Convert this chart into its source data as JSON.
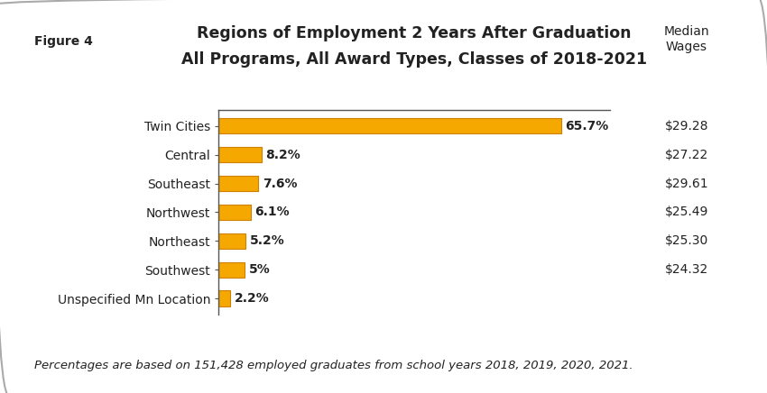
{
  "title_line1": "Regions of Employment 2 Years After Graduation",
  "title_line2": "All Programs, All Award Types, Classes of 2018-2021",
  "figure_label": "Figure 4",
  "median_wages_label": "Median\nWages",
  "categories": [
    "Twin Cities",
    "Central",
    "Southeast",
    "Northwest",
    "Northeast",
    "Southwest",
    "Unspecified Mn Location"
  ],
  "values": [
    65.7,
    8.2,
    7.6,
    6.1,
    5.2,
    5.0,
    2.2
  ],
  "value_labels": [
    "65.7%",
    "8.2%",
    "7.6%",
    "6.1%",
    "5.2%",
    "5%",
    "2.2%"
  ],
  "median_wages": [
    "$29.28",
    "$27.22",
    "$29.61",
    "$25.49",
    "$25.30",
    "$24.32",
    ""
  ],
  "bar_color": "#F5A800",
  "bar_edge_color": "#D08000",
  "footnote": "Percentages are based on 151,428 employed graduates from school years 2018, 2019, 2020, 2021.",
  "background_color": "#FFFFFF",
  "border_color": "#AAAAAA",
  "xlim": [
    0,
    75
  ],
  "title_fontsize": 12.5,
  "label_fontsize": 10,
  "ytick_fontsize": 10,
  "footnote_fontsize": 9.5,
  "figure_label_fontsize": 10,
  "value_label_fontsize": 10,
  "wages_fontsize": 10
}
